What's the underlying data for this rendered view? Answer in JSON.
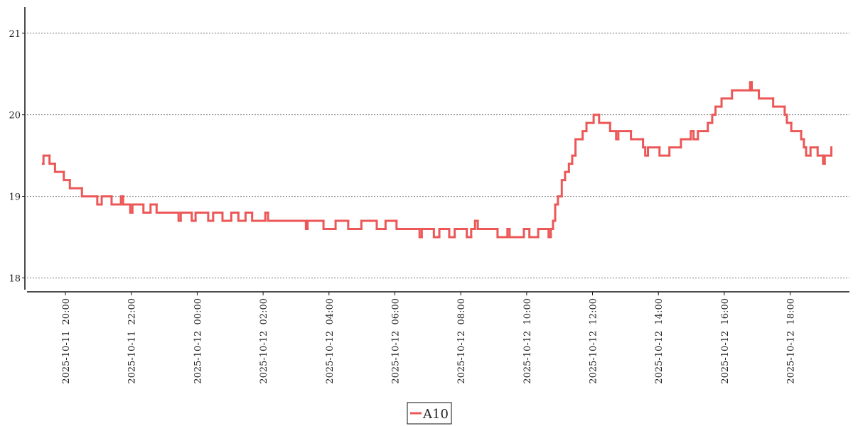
{
  "chart_data": {
    "type": "line",
    "step": "post",
    "grid": true,
    "legend": "bottom",
    "xlim": [
      "2025-10-11 18:50",
      "2025-10-12 19:48"
    ],
    "xticks": [
      {
        "value": "2025-10-11 20:00",
        "label": "2025-10-11  20:00"
      },
      {
        "value": "2025-10-11 22:00",
        "label": "2025-10-11  22:00"
      },
      {
        "value": "2025-10-12 00:00",
        "label": "2025-10-12  00:00"
      },
      {
        "value": "2025-10-12 02:00",
        "label": "2025-10-12  02:00"
      },
      {
        "value": "2025-10-12 04:00",
        "label": "2025-10-12  04:00"
      },
      {
        "value": "2025-10-12 06:00",
        "label": "2025-10-12  06:00"
      },
      {
        "value": "2025-10-12 08:00",
        "label": "2025-10-12  08:00"
      },
      {
        "value": "2025-10-12 10:00",
        "label": "2025-10-12  10:00"
      },
      {
        "value": "2025-10-12 12:00",
        "label": "2025-10-12  12:00"
      },
      {
        "value": "2025-10-12 14:00",
        "label": "2025-10-12  14:00"
      },
      {
        "value": "2025-10-12 16:00",
        "label": "2025-10-12  16:00"
      },
      {
        "value": "2025-10-12 18:00",
        "label": "2025-10-12  18:00"
      }
    ],
    "ylim": [
      17.83,
      21.32
    ],
    "yticks": [
      18,
      19,
      20,
      21
    ],
    "x": [
      "2025-10-11 19:19",
      "2025-10-11 19:20",
      "2025-10-11 19:31",
      "2025-10-11 19:41",
      "2025-10-11 19:57",
      "2025-10-11 20:08",
      "2025-10-11 20:30",
      "2025-10-11 20:58",
      "2025-10-11 21:06",
      "2025-10-11 21:24",
      "2025-10-11 21:41",
      "2025-10-11 21:45",
      "2025-10-11 21:58",
      "2025-10-11 22:02",
      "2025-10-11 22:22",
      "2025-10-11 22:35",
      "2025-10-11 22:46",
      "2025-10-11 23:26",
      "2025-10-11 23:30",
      "2025-10-11 23:50",
      "2025-10-11 23:57",
      "2025-10-12 00:20",
      "2025-10-12 00:29",
      "2025-10-12 00:46",
      "2025-10-12 01:02",
      "2025-10-12 01:15",
      "2025-10-12 01:28",
      "2025-10-12 01:40",
      "2025-10-12 02:04",
      "2025-10-12 02:09",
      "2025-10-12 03:18",
      "2025-10-12 03:21",
      "2025-10-12 03:50",
      "2025-10-12 04:12",
      "2025-10-12 04:35",
      "2025-10-12 04:59",
      "2025-10-12 05:27",
      "2025-10-12 05:43",
      "2025-10-12 05:59",
      "2025-10-12 06:03",
      "2025-10-12 06:45",
      "2025-10-12 06:49",
      "2025-10-12 07:11",
      "2025-10-12 07:21",
      "2025-10-12 07:39",
      "2025-10-12 07:49",
      "2025-10-12 08:11",
      "2025-10-12 08:19",
      "2025-10-12 08:26",
      "2025-10-12 08:31",
      "2025-10-12 09:07",
      "2025-10-12 09:25",
      "2025-10-12 09:29",
      "2025-10-12 09:55",
      "2025-10-12 10:05",
      "2025-10-12 10:21",
      "2025-10-12 10:40",
      "2025-10-12 10:44",
      "2025-10-12 10:48",
      "2025-10-12 10:52",
      "2025-10-12 10:57",
      "2025-10-12 11:04",
      "2025-10-12 11:10",
      "2025-10-12 11:17",
      "2025-10-12 11:23",
      "2025-10-12 11:29",
      "2025-10-12 11:42",
      "2025-10-12 11:49",
      "2025-10-12 12:02",
      "2025-10-12 12:12",
      "2025-10-12 12:32",
      "2025-10-12 12:43",
      "2025-10-12 12:47",
      "2025-10-12 13:10",
      "2025-10-12 13:32",
      "2025-10-12 13:36",
      "2025-10-12 13:41",
      "2025-10-12 14:02",
      "2025-10-12 14:20",
      "2025-10-12 14:41",
      "2025-10-12 14:59",
      "2025-10-12 15:04",
      "2025-10-12 15:12",
      "2025-10-12 15:30",
      "2025-10-12 15:38",
      "2025-10-12 15:44",
      "2025-10-12 15:55",
      "2025-10-12 16:14",
      "2025-10-12 16:47",
      "2025-10-12 16:50",
      "2025-10-12 17:03",
      "2025-10-12 17:29",
      "2025-10-12 17:50",
      "2025-10-12 17:54",
      "2025-10-12 18:02",
      "2025-10-12 18:20",
      "2025-10-12 18:25",
      "2025-10-12 18:29",
      "2025-10-12 18:37",
      "2025-10-12 18:50",
      "2025-10-12 19:00",
      "2025-10-12 19:03",
      "2025-10-12 19:15"
    ],
    "series": [
      {
        "name": "A10",
        "color": "#ec5757",
        "values": [
          19.4,
          19.5,
          19.4,
          19.3,
          19.2,
          19.1,
          19.0,
          18.9,
          19.0,
          18.9,
          19.0,
          18.9,
          18.8,
          18.9,
          18.8,
          18.9,
          18.8,
          18.7,
          18.8,
          18.7,
          18.8,
          18.7,
          18.8,
          18.7,
          18.8,
          18.7,
          18.8,
          18.7,
          18.8,
          18.7,
          18.6,
          18.7,
          18.6,
          18.7,
          18.6,
          18.7,
          18.6,
          18.7,
          18.7,
          18.6,
          18.5,
          18.6,
          18.5,
          18.6,
          18.5,
          18.6,
          18.5,
          18.6,
          18.7,
          18.6,
          18.5,
          18.6,
          18.5,
          18.6,
          18.5,
          18.6,
          18.5,
          18.6,
          18.7,
          18.9,
          19.0,
          19.2,
          19.3,
          19.4,
          19.5,
          19.7,
          19.8,
          19.9,
          20.0,
          19.9,
          19.8,
          19.7,
          19.8,
          19.7,
          19.6,
          19.5,
          19.6,
          19.5,
          19.6,
          19.7,
          19.8,
          19.7,
          19.8,
          19.9,
          20.0,
          20.1,
          20.2,
          20.3,
          20.4,
          20.3,
          20.2,
          20.1,
          20.0,
          19.9,
          19.8,
          19.7,
          19.6,
          19.5,
          19.6,
          19.5,
          19.4,
          19.5,
          19.6
        ]
      }
    ]
  }
}
